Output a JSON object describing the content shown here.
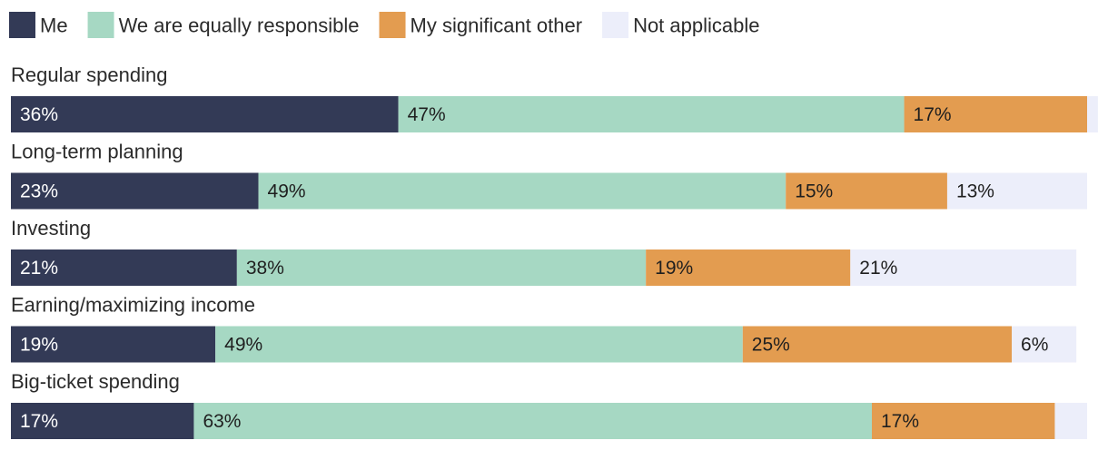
{
  "chart_data": {
    "type": "bar",
    "orientation": "horizontal",
    "stacked": true,
    "title": "",
    "xlabel": "",
    "ylabel": "",
    "legend_position": "top-left",
    "grid": false,
    "categories": [
      "Regular spending",
      "Long-term planning",
      "Investing",
      "Earning/maximizing income",
      "Big-ticket spending"
    ],
    "series": [
      {
        "name": "Me",
        "color": "#333a56",
        "label_color": "#ffffff",
        "values": [
          36,
          23,
          21,
          19,
          17
        ],
        "labels": [
          "36%",
          "23%",
          "21%",
          "19%",
          "17%"
        ]
      },
      {
        "name": "We are equally responsible",
        "color": "#a6d8c3",
        "label_color": "#1f1f1f",
        "values": [
          47,
          49,
          38,
          49,
          63
        ],
        "labels": [
          "47%",
          "49%",
          "38%",
          "49%",
          "63%"
        ]
      },
      {
        "name": "My significant other",
        "color": "#e39c50",
        "label_color": "#1f1f1f",
        "values": [
          17,
          15,
          19,
          25,
          17
        ],
        "labels": [
          "17%",
          "15%",
          "19%",
          "25%",
          "17%"
        ]
      },
      {
        "name": "Not applicable",
        "color": "#eceefa",
        "label_color": "#1f1f1f",
        "values": [
          1,
          13,
          21,
          6,
          3
        ],
        "labels": [
          "",
          "13%",
          "21%",
          "6%",
          ""
        ]
      }
    ]
  }
}
